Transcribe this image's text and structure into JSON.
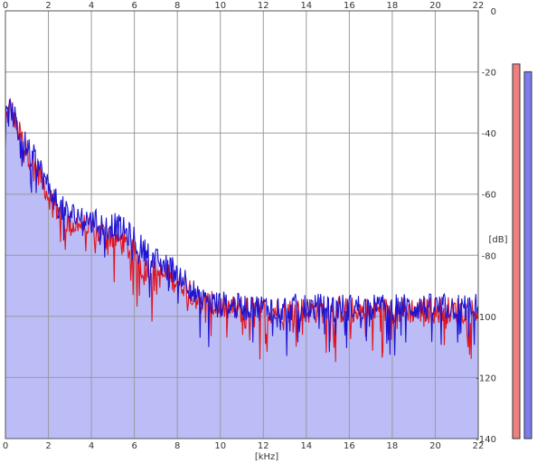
{
  "chart_data": {
    "type": "line",
    "title": "",
    "xlabel": "[kHz]",
    "ylabel": "[dB]",
    "x_unit": "kHz",
    "y_unit": "dB",
    "xlim": [
      0,
      22
    ],
    "ylim": [
      -140,
      0
    ],
    "x_ticks": [
      0,
      2,
      4,
      6,
      8,
      10,
      12,
      14,
      16,
      18,
      20,
      22
    ],
    "x_tick_labels": [
      "0",
      "2",
      "4",
      "6",
      "8",
      "10",
      "12",
      "14",
      "16",
      "18",
      "20",
      "22"
    ],
    "y_ticks": [
      0,
      -20,
      -40,
      -60,
      -80,
      -100,
      -120,
      -140
    ],
    "y_tick_labels": [
      "0",
      "-20",
      "-40",
      "-60",
      "-80",
      "-100",
      "-120",
      "-140"
    ],
    "grid": true,
    "fill_color": "#bcbcf6",
    "series": [
      {
        "color": "#e0141e",
        "x": [
          0,
          0.25,
          0.5,
          1,
          1.5,
          2,
          2.5,
          3,
          3.5,
          4,
          4.5,
          5,
          5.5,
          6,
          6.5,
          7,
          7.5,
          8,
          8.5,
          9,
          10,
          11,
          12,
          13,
          14,
          15,
          16,
          17,
          18,
          19,
          20,
          21,
          22
        ],
        "y": [
          -36,
          -31,
          -38,
          -46,
          -52,
          -60,
          -66,
          -70,
          -70,
          -72,
          -73,
          -74,
          -76,
          -80,
          -84,
          -86,
          -87,
          -88,
          -90,
          -95,
          -97,
          -98,
          -98,
          -98,
          -98,
          -98,
          -98,
          -98,
          -98,
          -98,
          -98,
          -98,
          -98
        ]
      },
      {
        "color": "#1e14d2",
        "x": [
          0,
          0.25,
          0.5,
          1,
          1.5,
          2,
          2.5,
          3,
          3.5,
          4,
          4.5,
          5,
          5.5,
          6,
          6.5,
          7,
          7.5,
          8,
          8.5,
          9,
          10,
          11,
          12,
          13,
          14,
          15,
          16,
          17,
          18,
          19,
          20,
          21,
          22
        ],
        "y": [
          -36,
          -32,
          -37,
          -45,
          -50,
          -58,
          -64,
          -67,
          -67,
          -69,
          -70,
          -70,
          -72,
          -75,
          -79,
          -82,
          -84,
          -85,
          -89,
          -95,
          -96,
          -97,
          -97,
          -97,
          -97,
          -97,
          -97,
          -97,
          -97,
          -97,
          -97,
          -97,
          -97
        ]
      }
    ],
    "level_meters": [
      {
        "color": "#f08080",
        "value": 0.97
      },
      {
        "color": "#7c7cf0",
        "value": 0.95
      }
    ]
  }
}
